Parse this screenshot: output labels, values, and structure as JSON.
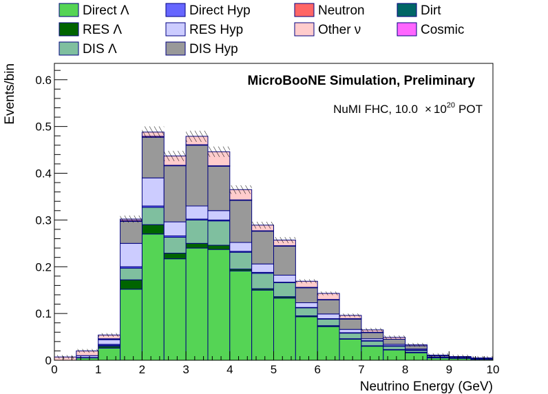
{
  "chart_data": {
    "type": "bar",
    "stacked": true,
    "title": "MicroBooNE Simulation, Preliminary",
    "subtitle": {
      "text": "NuMI FHC, 10.0",
      "times": "×",
      "base": "10",
      "exponent": "20",
      "unit": "POT"
    },
    "xlabel": "Neutrino Energy (GeV)",
    "ylabel": "Events/bin",
    "xlim": [
      0,
      10
    ],
    "ylim": [
      0,
      0.635
    ],
    "xticks": [
      "0",
      "1",
      "2",
      "3",
      "4",
      "5",
      "6",
      "7",
      "8",
      "9",
      "10"
    ],
    "yticks": [
      "0",
      "0.1",
      "0.2",
      "0.3",
      "0.4",
      "0.5",
      "0.6"
    ],
    "ytick_values": [
      0,
      0.1,
      0.2,
      0.3,
      0.4,
      0.5,
      0.6
    ],
    "bin_edges": [
      0,
      0.5,
      1,
      1.5,
      2,
      2.5,
      3,
      3.5,
      4,
      4.5,
      5,
      5.5,
      6,
      6.5,
      7,
      7.5,
      8,
      8.5,
      9,
      9.5,
      10
    ],
    "legend_position": "top",
    "series": [
      {
        "name": "Direct Λ",
        "color": "#55d455",
        "values": [
          0,
          0.005,
          0.026,
          0.152,
          0.27,
          0.217,
          0.24,
          0.237,
          0.191,
          0.15,
          0.133,
          0.093,
          0.072,
          0.045,
          0.03,
          0.022,
          0.016,
          0.005,
          0.004,
          0.002
        ]
      },
      {
        "name": "RES Λ",
        "color": "#006400",
        "values": [
          0,
          0.001,
          0.004,
          0.02,
          0.02,
          0.012,
          0.01,
          0.009,
          0.004,
          0.003,
          0.003,
          0.002,
          0.002,
          0.001,
          0.001,
          0.001,
          0.001,
          0,
          0,
          0
        ]
      },
      {
        "name": "DIS Λ",
        "color": "#7fbf9f",
        "values": [
          0,
          0,
          0.002,
          0.025,
          0.037,
          0.034,
          0.05,
          0.052,
          0.036,
          0.033,
          0.03,
          0.017,
          0.014,
          0.012,
          0.01,
          0.007,
          0.004,
          0.001,
          0,
          0
        ]
      },
      {
        "name": "Direct Hyp",
        "color": "#6666ff",
        "values": [
          0,
          0,
          0.002,
          0.003,
          0.003,
          0.003,
          0.002,
          0.002,
          0.002,
          0.002,
          0.001,
          0.001,
          0.001,
          0.001,
          0.001,
          0.001,
          0.001,
          0,
          0,
          0
        ]
      },
      {
        "name": "RES Hyp",
        "color": "#ccccff",
        "values": [
          0,
          0.004,
          0.01,
          0.05,
          0.06,
          0.03,
          0.028,
          0.02,
          0.019,
          0.018,
          0.015,
          0.01,
          0.01,
          0.007,
          0.004,
          0.003,
          0.002,
          0.001,
          0.001,
          0.001
        ]
      },
      {
        "name": "DIS Hyp",
        "color": "#999999",
        "values": [
          0,
          0,
          0.001,
          0.047,
          0.087,
          0.12,
          0.13,
          0.095,
          0.09,
          0.07,
          0.062,
          0.032,
          0.03,
          0.022,
          0.013,
          0.011,
          0.007,
          0.003,
          0.002,
          0.001
        ]
      },
      {
        "name": "Neutron",
        "color": "#ff6666",
        "values": [
          0,
          0,
          0.001,
          0.002,
          0.002,
          0.001,
          0.001,
          0.001,
          0.001,
          0.001,
          0.001,
          0.001,
          0.001,
          0.001,
          0.001,
          0,
          0,
          0,
          0,
          0
        ]
      },
      {
        "name": "Other ν",
        "color": "#ffcccc",
        "values": [
          0.007,
          0.01,
          0.008,
          0.003,
          0.009,
          0.02,
          0.018,
          0.03,
          0.022,
          0.012,
          0.012,
          0.013,
          0.013,
          0.007,
          0.005,
          0.004,
          0.002,
          0.001,
          0.001,
          0.001
        ]
      },
      {
        "name": "Dirt",
        "color": "#006666",
        "values": [
          0,
          0,
          0,
          0,
          0,
          0,
          0,
          0,
          0,
          0,
          0,
          0,
          0,
          0,
          0,
          0,
          0,
          0,
          0,
          0
        ]
      },
      {
        "name": "Cosmic",
        "color": "#ff66ff",
        "values": [
          0,
          0,
          0,
          0,
          0,
          0,
          0,
          0,
          0,
          0,
          0,
          0,
          0,
          0,
          0,
          0,
          0,
          0,
          0,
          0
        ]
      }
    ],
    "error_band": {
      "hatched": true,
      "relative": 0.025
    },
    "outline_color": "#000080",
    "grid": false
  }
}
